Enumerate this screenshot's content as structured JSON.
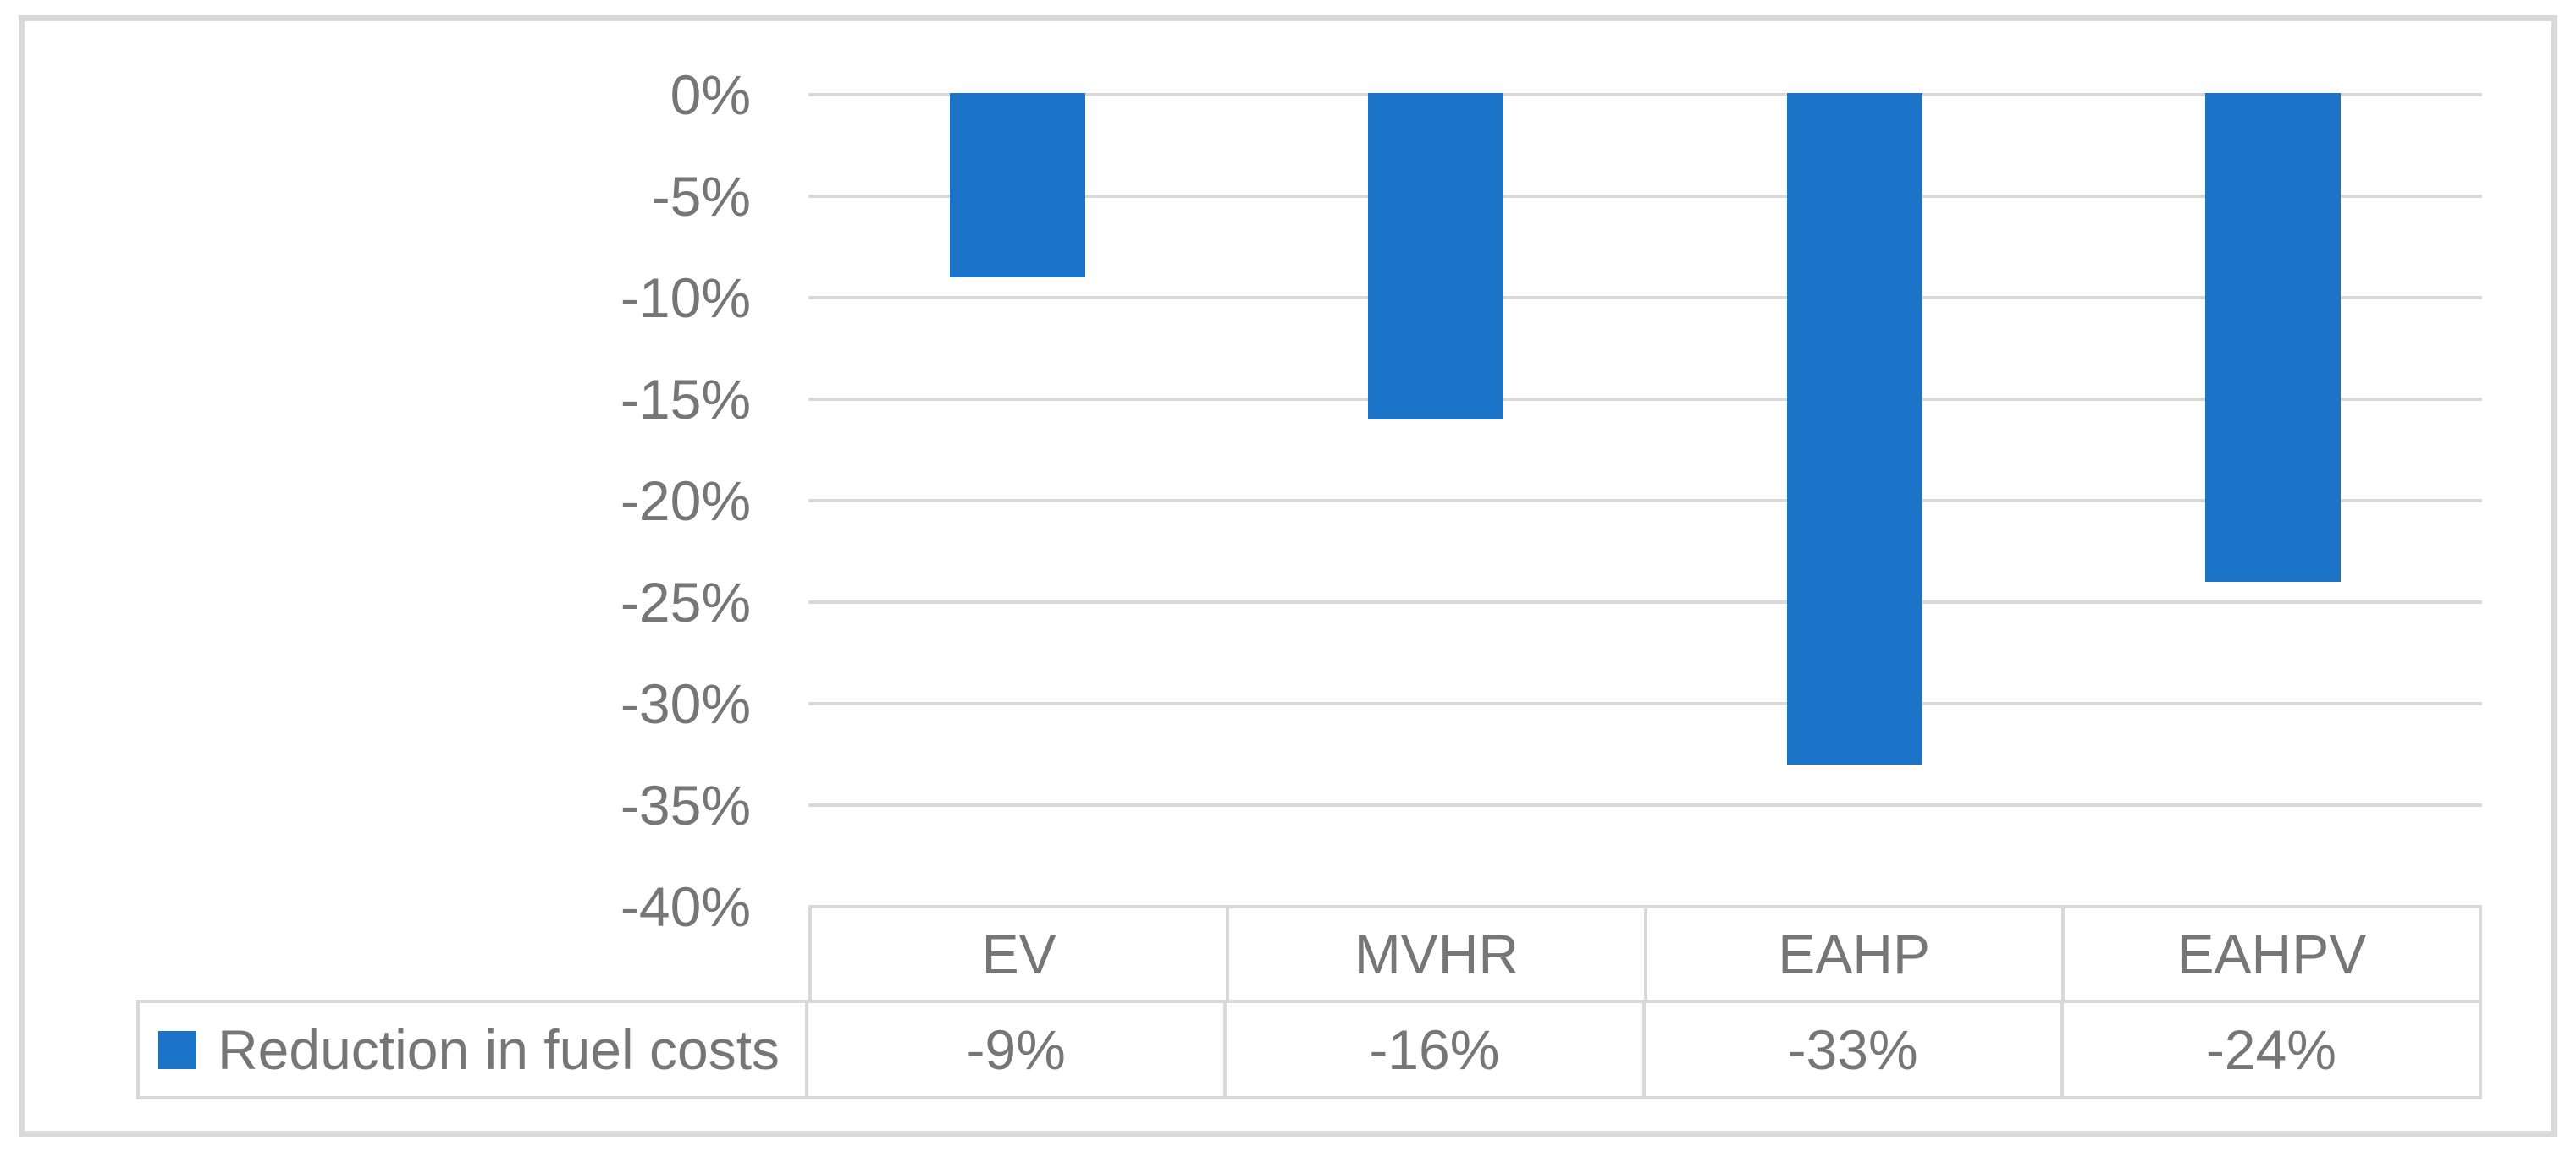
{
  "figure": {
    "background_color": "#ffffff",
    "border_color": "#d9d9d9",
    "text_color": "#767676"
  },
  "chart_data": {
    "type": "bar",
    "title": "",
    "xlabel": "",
    "ylabel": "",
    "categories": [
      "EV",
      "MVHR",
      "EAHP",
      "EAHPV"
    ],
    "series": [
      {
        "name": "Reduction in fuel costs",
        "values": [
          -9,
          -16,
          -33,
          -24
        ],
        "color": "#1b74c8"
      }
    ],
    "y_ticks": [
      "0%",
      "-5%",
      "-10%",
      "-15%",
      "-20%",
      "-25%",
      "-30%",
      "-35%",
      "-40%"
    ],
    "y_tick_values": [
      0,
      -5,
      -10,
      -15,
      -20,
      -25,
      -30,
      -35,
      -40
    ],
    "ylim": [
      -40,
      0
    ],
    "grid": true,
    "legend_position": "bottom-left-data-table",
    "data_table": {
      "row_label": "Reduction in fuel costs",
      "cell_values": [
        "-9%",
        "-16%",
        "-33%",
        "-24%"
      ]
    },
    "colors": {
      "bar": "#1b74c8",
      "gridline": "#d9d9d9",
      "table_border": "#d9d9d9",
      "text": "#767676"
    }
  }
}
